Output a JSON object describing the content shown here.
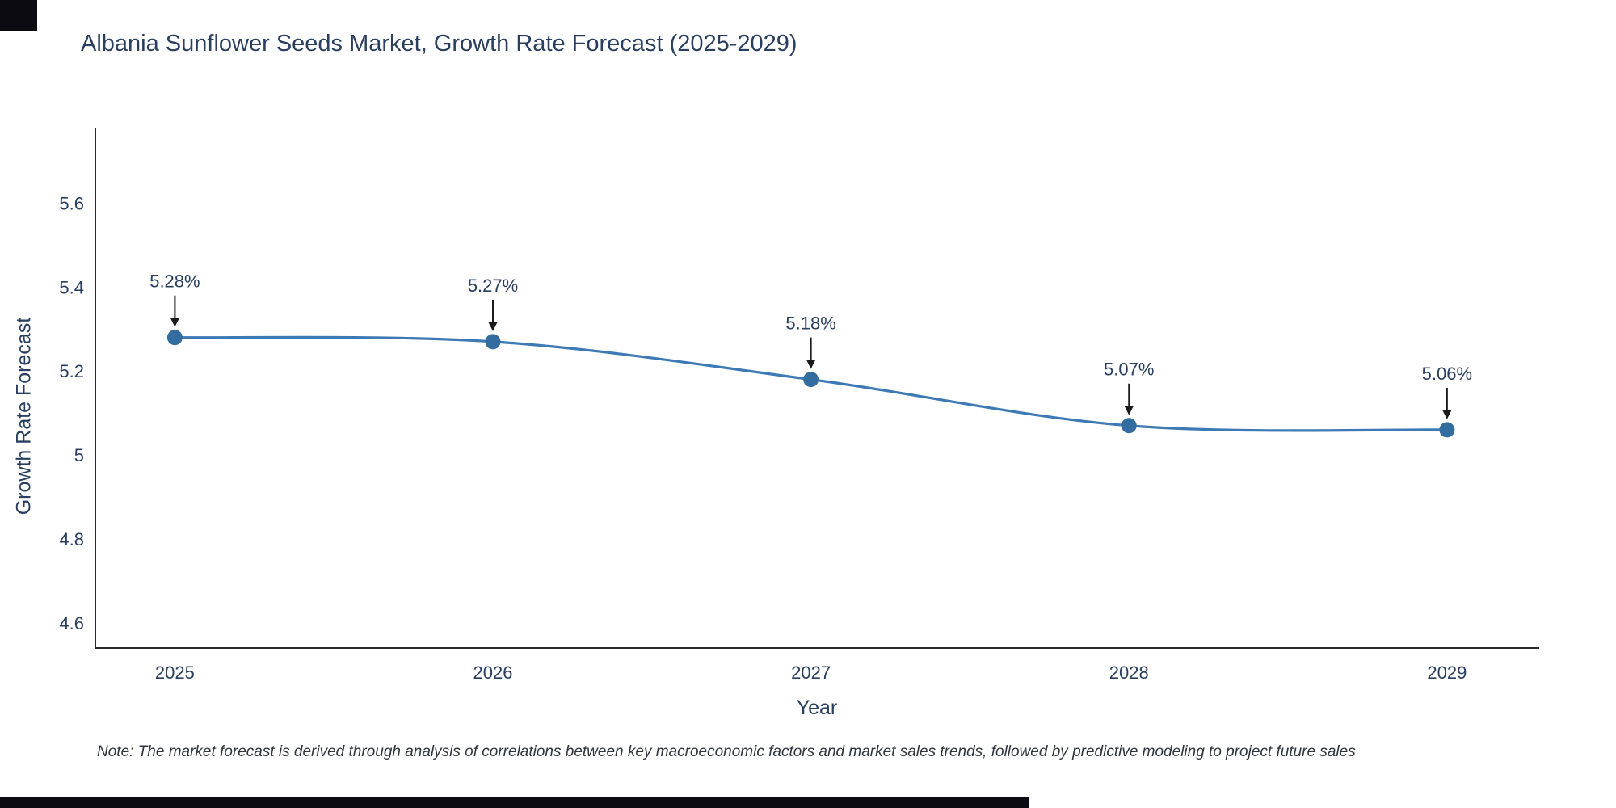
{
  "chart_data": {
    "type": "line",
    "title": "Albania Sunflower Seeds Market, Growth Rate Forecast (2025-2029)",
    "xlabel": "Year",
    "ylabel": "Growth Rate Forecast",
    "x": [
      2025,
      2026,
      2027,
      2028,
      2029
    ],
    "values": [
      5.28,
      5.27,
      5.18,
      5.07,
      5.06
    ],
    "point_labels": [
      "5.28%",
      "5.27%",
      "5.18%",
      "5.07%",
      "5.06%"
    ],
    "x_tick_labels": [
      "2025",
      "2026",
      "2027",
      "2028",
      "2029"
    ],
    "y_ticks": [
      4.6,
      4.8,
      5,
      5.2,
      5.4,
      5.6
    ],
    "y_tick_labels": [
      "4.6",
      "4.8",
      "5",
      "5.2",
      "5.4",
      "5.6"
    ],
    "xlim": [
      2024.75,
      2029.29
    ],
    "ylim": [
      4.54,
      5.78
    ],
    "grid": false,
    "legend": false,
    "line_color": "#3d7ab5",
    "marker_color": "#336d9f",
    "axis_color": "#2a2a2a",
    "annotation_arrow_color": "#1a1a1a"
  },
  "note": "Note: The market forecast is derived through analysis of correlations between key macroeconomic factors and market sales trends, followed by predictive modeling to project future sales"
}
